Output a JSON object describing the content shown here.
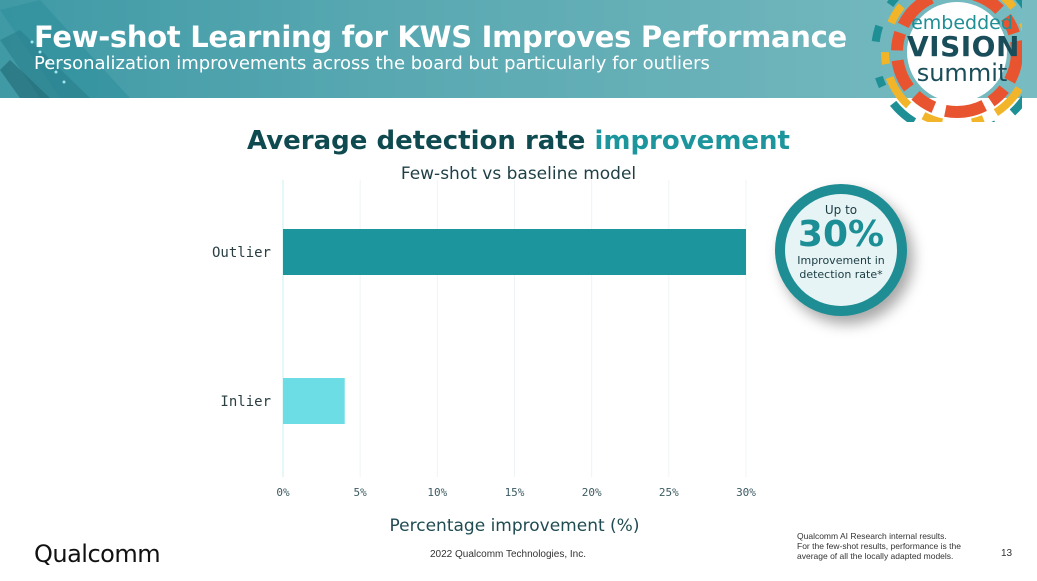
{
  "slide": {
    "title": "Few-shot Learning for KWS Improves Performance",
    "subtitle": "Personalization improvements across the board but particularly for outliers",
    "event_logo": {
      "line1": "embedded",
      "line2": "VISION",
      "line3": "summit"
    },
    "colors": {
      "header": "#5aa9b2",
      "title_dark": "#0e4a50",
      "accent": "#1c959c",
      "outlier_bar": "#1c959c",
      "inlier_bar": "#6ddde5"
    }
  },
  "chart_data": {
    "type": "bar",
    "orientation": "horizontal",
    "title": "Average detection rate improvement",
    "title_main": "Average detection rate ",
    "title_accent": "improvement",
    "subtitle": "Few-shot vs baseline model",
    "categories": [
      "Outlier",
      "Inlier"
    ],
    "values": [
      30,
      4
    ],
    "xlabel": "Percentage improvement (%)",
    "ylabel": "",
    "xlim": [
      0,
      30
    ],
    "xticks": [
      0,
      5,
      10,
      15,
      20,
      25,
      30
    ],
    "xtick_labels": [
      "0%",
      "5%",
      "10%",
      "15%",
      "20%",
      "25%",
      "30%"
    ],
    "grid": true,
    "legend": "none"
  },
  "callout": {
    "prefix": "Up to",
    "value": "30%",
    "description_line1": "Improvement in",
    "description_line2": "detection rate*"
  },
  "footer": {
    "company_logo": "Qualcomm",
    "copyright": "2022 Qualcomm Technologies, Inc.",
    "footnote_line1": "Qualcomm AI Research internal results.",
    "footnote_line2": "For the few-shot results, performance is the",
    "footnote_line3": "average of all the locally adapted models.",
    "page_number": "13"
  }
}
